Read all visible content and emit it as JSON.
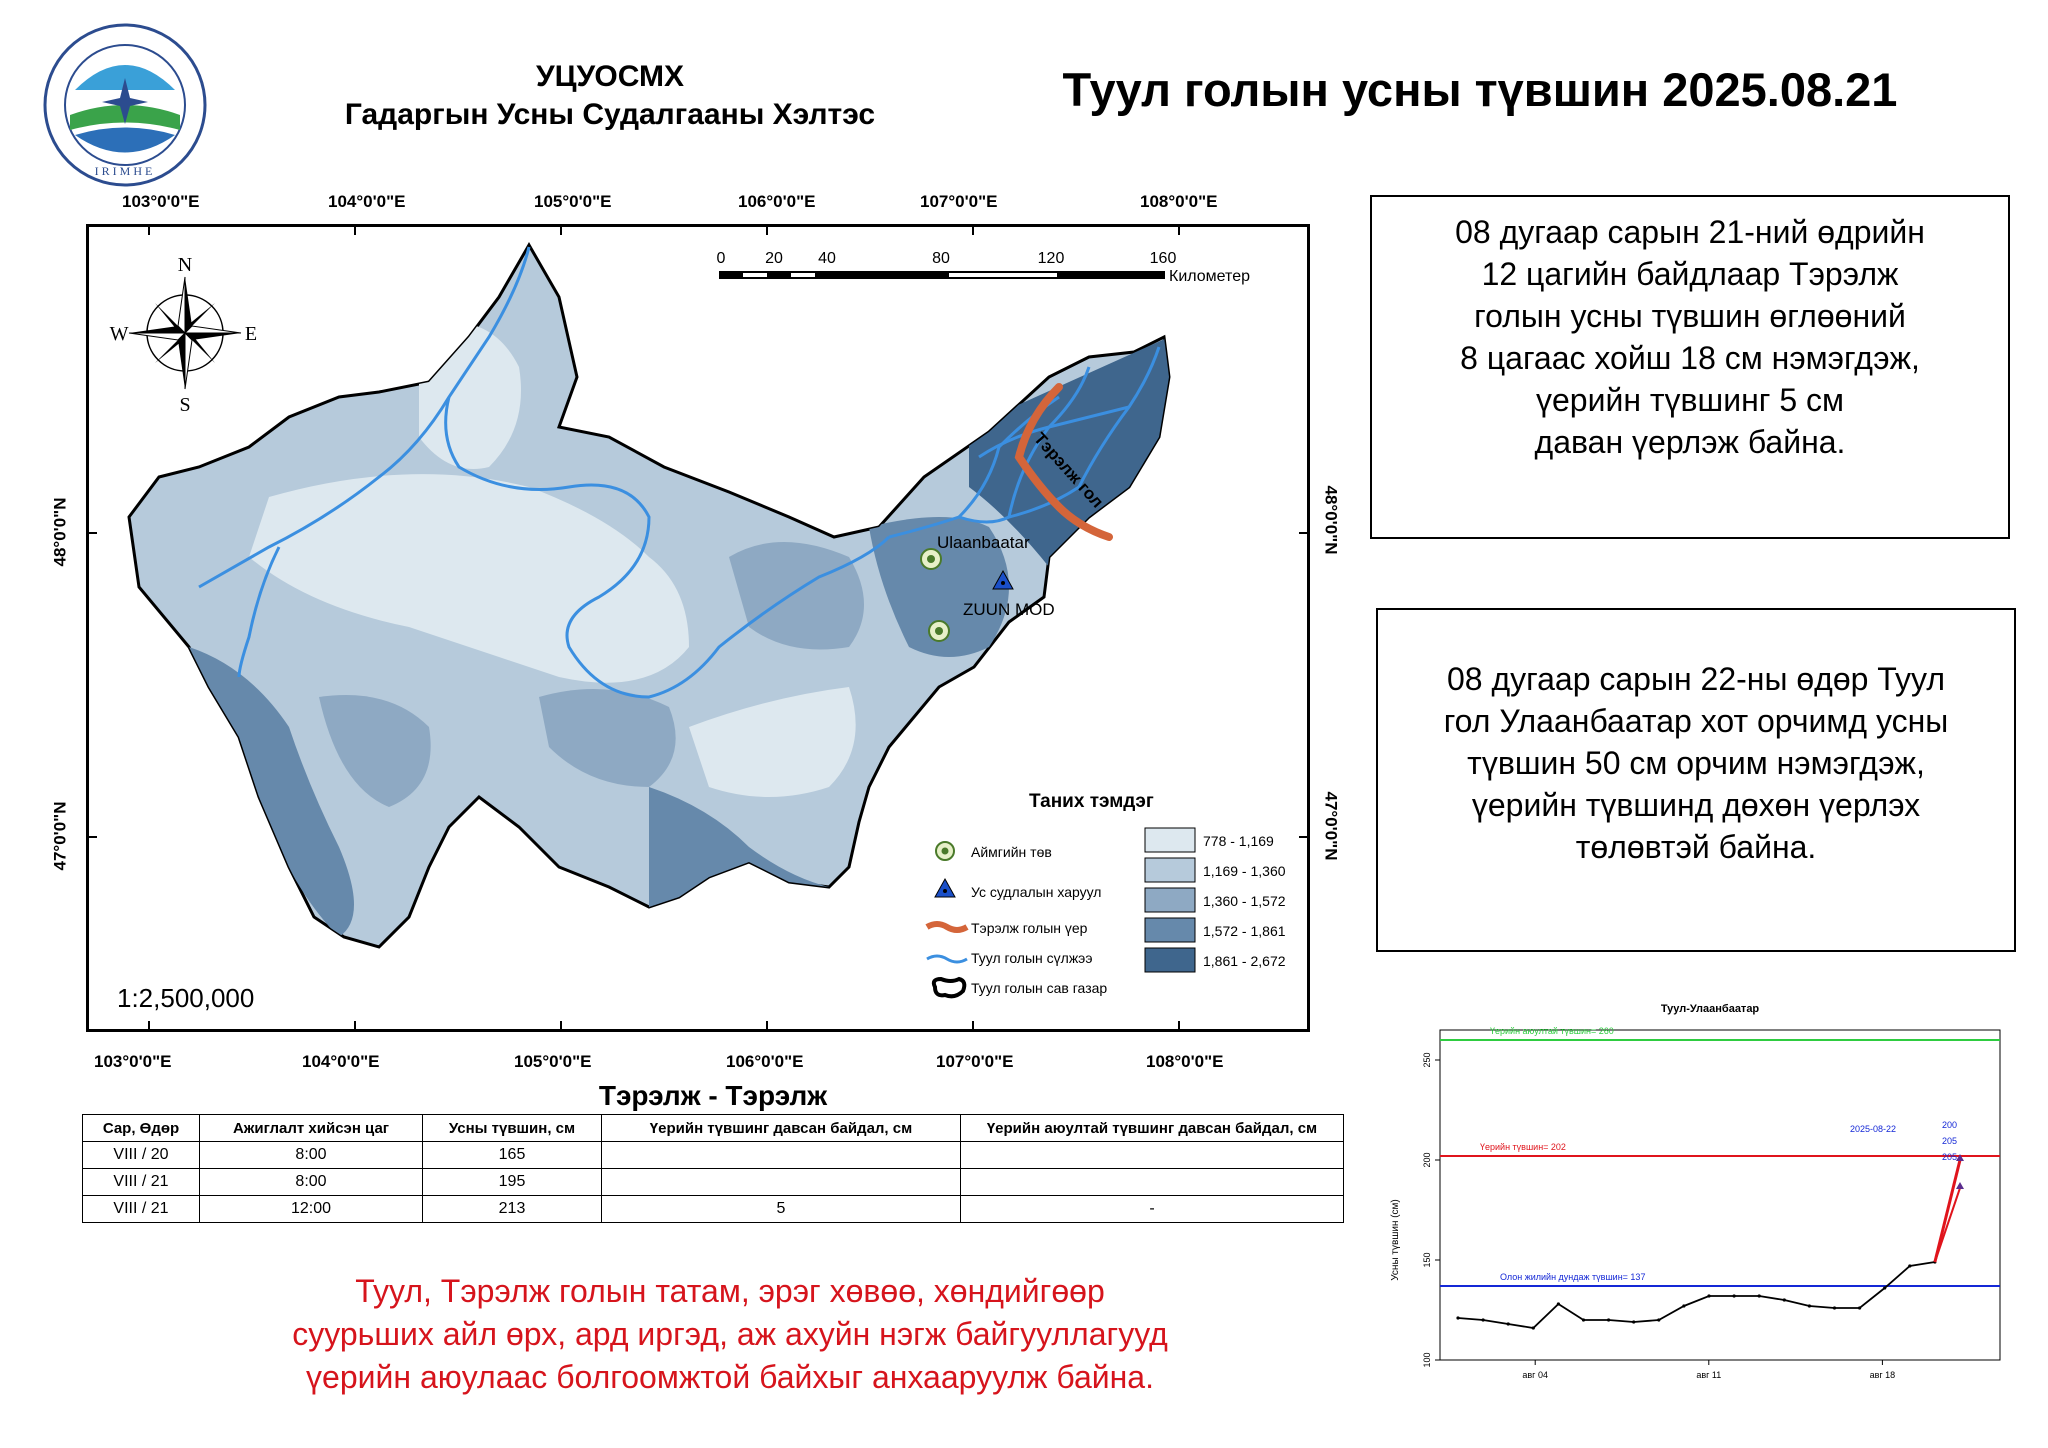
{
  "header": {
    "org_abbr": "УЦУОСМХ",
    "org_name": "Гадаргын Усны Судалгааны Хэлтэс",
    "title": "Туул голын усны түвшин 2025.08.21",
    "logo_text": "IRIMHE"
  },
  "map": {
    "lon_labels": [
      "103°0'0\"E",
      "104°0'0\"E",
      "105°0'0\"E",
      "106°0'0\"E",
      "107°0'0\"E",
      "108°0'0\"E"
    ],
    "lat_labels": [
      "48°0'0\"N",
      "47°0'0\"N"
    ],
    "north": "N",
    "south": "S",
    "east": "E",
    "west": "W",
    "scale_ticks": [
      "0",
      "20",
      "40",
      "80",
      "120",
      "160"
    ],
    "scale_unit": "Километер",
    "ratio": "1:2,500,000",
    "places": {
      "ub": "Ulaanbaatar",
      "zuunmod": "ZUUN MOD",
      "river": "Тэрэлж гол"
    },
    "colors": {
      "c1": "#dde8ef",
      "c2": "#b6cadb",
      "c3": "#8ea9c3",
      "c4": "#6689ab",
      "c5": "#3f668d",
      "river": "#3b8fe0",
      "flood": "#d4653a"
    }
  },
  "legend": {
    "title": "Таних тэмдэг",
    "items": [
      "Аймгийн төв",
      "Ус судлалын харуул",
      "Тэрэлж голын үер",
      "Туул голын сүлжээ",
      "Туул голын сав газар"
    ],
    "classes": [
      "778 - 1,169",
      "1,169 - 1,360",
      "1,360 - 1,572",
      "1,572 - 1,861",
      "1,861 - 2,672"
    ]
  },
  "box1": {
    "lines": [
      "08 дугаар сарын 21-ний өдрийн",
      "12 цагийн байдлаар Тэрэлж",
      "голын усны түвшин өглөөний",
      "8 цагаас хойш 18 см нэмэгдэж,",
      "үерийн түвшинг 5 см",
      "даван үерлэж байна."
    ]
  },
  "box2": {
    "lines": [
      "08 дугаар сарын 22-ны өдөр Туул",
      "гол Улаанбаатар хот орчимд усны",
      "түвшин 50 см орчим нэмэгдэж,",
      "үерийн түвшинд дөхөн үерлэх",
      "төлөвтэй байна."
    ]
  },
  "table": {
    "title": "Тэрэлж - Тэрэлж",
    "headers": [
      "Сар, Өдөр",
      "Ажиглалт хийсэн цаг",
      "Усны түвшин, см",
      "Үерийн түвшинг давсан байдал, см",
      "Үерийн аюултай түвшинг давсан байдал, см"
    ],
    "rows": [
      [
        "VIII / 20",
        "8:00",
        "165",
        "",
        ""
      ],
      [
        "VIII / 21",
        "8:00",
        "195",
        "",
        ""
      ],
      [
        "VIII / 21",
        "12:00",
        "213",
        "5",
        "-"
      ]
    ]
  },
  "chart_data": {
    "type": "line",
    "title": "Туул-Улаанбаатар",
    "ylabel": "Усны түвшин (см)",
    "xlabel": "",
    "ylim": [
      100,
      265
    ],
    "y_ticks": [
      "100",
      "150",
      "200",
      "250"
    ],
    "x_ticks": [
      "авг 04",
      "авг 11",
      "авг 18"
    ],
    "grid": false,
    "series": [
      {
        "values": [
          121,
          120,
          118,
          116,
          128,
          120,
          120,
          119,
          120,
          127,
          132,
          132,
          132,
          130,
          127,
          126,
          126,
          136,
          147,
          149,
          200
        ]
      }
    ],
    "forecast": {
      "label": "2025-08-22",
      "values": [
        "200",
        "205",
        "205"
      ]
    },
    "reference_lines": [
      {
        "label": "Үерийн аюултай түвшин= 260",
        "value": 260,
        "color": "#2ecc40"
      },
      {
        "label": "Үерийн түвшин= 202",
        "value": 202,
        "color": "#e0141c"
      },
      {
        "label": "Олон жилийн дундаж түвшин= 137",
        "value": 137,
        "color": "#1428d6"
      }
    ]
  },
  "warning": {
    "lines": [
      "Туул, Тэрэлж  голын татам, эрэг хөвөө, хөндийгөөр",
      "суурьших айл өрх, ард иргэд, аж ахуйн нэгж байгууллагууд",
      "үерийн аюулаас болгоомжтой байхыг анхааруулж байна."
    ]
  }
}
